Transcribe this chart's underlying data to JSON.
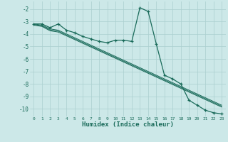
{
  "xlabel": "Humidex (Indice chaleur)",
  "background_color": "#cce8e8",
  "grid_color": "#aacfcf",
  "line_color": "#1a6b5a",
  "xlim": [
    -0.5,
    23.5
  ],
  "ylim": [
    -10.6,
    -1.4
  ],
  "xticks": [
    0,
    1,
    2,
    3,
    4,
    5,
    6,
    7,
    8,
    9,
    10,
    11,
    12,
    13,
    14,
    15,
    16,
    17,
    18,
    19,
    20,
    21,
    22,
    23
  ],
  "yticks": [
    -2,
    -3,
    -4,
    -5,
    -6,
    -7,
    -8,
    -9,
    -10
  ],
  "x": [
    0,
    1,
    2,
    3,
    4,
    5,
    6,
    7,
    8,
    9,
    10,
    11,
    12,
    13,
    14,
    15,
    16,
    17,
    18,
    19,
    20,
    21,
    22,
    23
  ],
  "y_main": [
    -3.2,
    -3.2,
    -3.5,
    -3.2,
    -3.7,
    -3.9,
    -4.2,
    -4.4,
    -4.6,
    -4.7,
    -4.5,
    -4.5,
    -4.6,
    -1.9,
    -2.2,
    -4.8,
    -7.3,
    -7.6,
    -8.0,
    -9.3,
    -9.7,
    -10.1,
    -10.3,
    -10.4
  ],
  "y_line1": [
    -3.2,
    -3.3,
    -3.6,
    -3.7,
    -4.0,
    -4.3,
    -4.6,
    -4.9,
    -5.2,
    -5.5,
    -5.8,
    -6.1,
    -6.4,
    -6.7,
    -7.0,
    -7.3,
    -7.6,
    -7.9,
    -8.2,
    -8.5,
    -8.8,
    -9.1,
    -9.4,
    -9.7
  ],
  "y_line2": [
    -3.25,
    -3.35,
    -3.68,
    -3.78,
    -4.08,
    -4.38,
    -4.68,
    -4.98,
    -5.28,
    -5.58,
    -5.88,
    -6.18,
    -6.48,
    -6.78,
    -7.08,
    -7.38,
    -7.68,
    -7.98,
    -8.28,
    -8.58,
    -8.88,
    -9.18,
    -9.48,
    -9.78
  ],
  "y_line3": [
    -3.3,
    -3.4,
    -3.75,
    -3.85,
    -4.15,
    -4.45,
    -4.75,
    -5.05,
    -5.35,
    -5.65,
    -5.95,
    -6.25,
    -6.55,
    -6.85,
    -7.15,
    -7.45,
    -7.75,
    -8.05,
    -8.35,
    -8.65,
    -8.95,
    -9.25,
    -9.55,
    -9.85
  ]
}
